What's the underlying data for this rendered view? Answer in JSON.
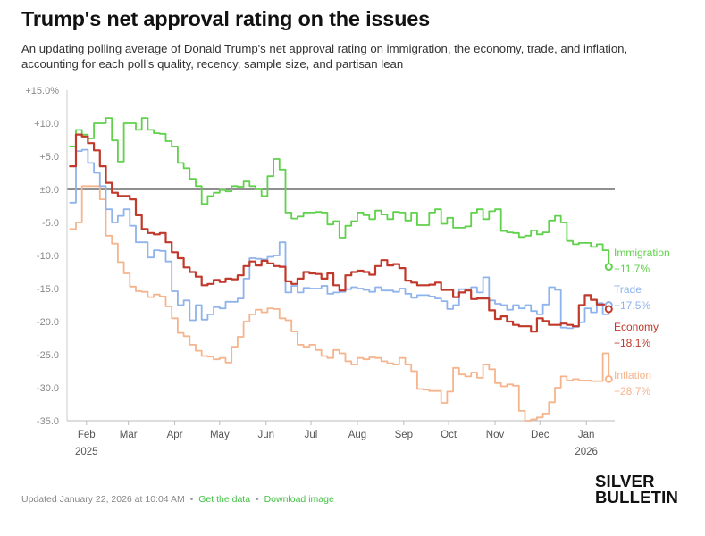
{
  "header": {
    "title": "Trump's net approval rating on the issues",
    "subtitle": "An updating polling average of Donald Trump's net approval rating on immigration, the economy, trade, and inflation, accounting for each poll's quality, recency, sample size, and partisan lean"
  },
  "footer": {
    "updated": "Updated January 22, 2026 at 10:04 AM",
    "separator": "•",
    "get_data": "Get the data",
    "download": "Download image"
  },
  "logo": {
    "line1": "SILVER",
    "line2": "BULLETIN"
  },
  "colors": {
    "immigration": "#5fd14a",
    "trade": "#8fb3ec",
    "economy": "#c0392b",
    "inflation": "#f6b48c",
    "link": "#45c045"
  },
  "chart_data": {
    "type": "line",
    "title": "Trump's net approval rating on the issues",
    "xlabel": "",
    "ylabel": "",
    "ylim": [
      -35,
      15
    ],
    "yticks": [
      15,
      10,
      5,
      0,
      -5,
      -10,
      -15,
      -20,
      -25,
      -30,
      -35
    ],
    "ytick_labels": [
      "+15.0%",
      "+10.0",
      "+5.0",
      "±0.0",
      "-5.0",
      "-10.0",
      "-15.0",
      "-20.0",
      "-25.0",
      "-30.0",
      "-35.0"
    ],
    "xlim_days": [
      0,
      366
    ],
    "xticks": [
      {
        "day": 13,
        "label": "Feb",
        "sub": "2025"
      },
      {
        "day": 41,
        "label": "Mar"
      },
      {
        "day": 72,
        "label": "Apr"
      },
      {
        "day": 102,
        "label": "May"
      },
      {
        "day": 133,
        "label": "Jun"
      },
      {
        "day": 163,
        "label": "Jul"
      },
      {
        "day": 194,
        "label": "Aug"
      },
      {
        "day": 225,
        "label": "Sep"
      },
      {
        "day": 255,
        "label": "Oct"
      },
      {
        "day": 286,
        "label": "Nov"
      },
      {
        "day": 316,
        "label": "Dec"
      },
      {
        "day": 347,
        "label": "Jan",
        "sub": "2026"
      }
    ],
    "x_days": [
      2,
      6,
      10,
      14,
      18,
      22,
      26,
      30,
      34,
      38,
      42,
      46,
      50,
      54,
      58,
      62,
      66,
      70,
      74,
      78,
      82,
      86,
      90,
      94,
      98,
      102,
      106,
      110,
      114,
      118,
      122,
      126,
      130,
      134,
      138,
      142,
      146,
      150,
      154,
      158,
      162,
      166,
      170,
      174,
      178,
      182,
      186,
      190,
      194,
      198,
      202,
      206,
      210,
      214,
      218,
      222,
      226,
      230,
      234,
      238,
      242,
      246,
      250,
      254,
      258,
      262,
      266,
      270,
      274,
      278,
      282,
      286,
      290,
      294,
      298,
      302,
      306,
      310,
      314,
      318,
      322,
      326,
      330,
      334,
      338,
      342,
      346,
      350,
      354,
      358,
      362
    ],
    "series": [
      {
        "name": "Immigration",
        "color": "#5fd14a",
        "final_label": "−11.7%",
        "values": [
          6.5,
          9,
          8.3,
          7.7,
          10,
          10,
          10.8,
          7.4,
          4.2,
          10,
          10,
          9,
          10.8,
          9,
          8.5,
          8.4,
          7.3,
          6.5,
          4,
          3.2,
          1.6,
          0.5,
          -2.2,
          -1,
          -0.5,
          -0.1,
          -0.3,
          0.5,
          0.4,
          1.2,
          0.5,
          0,
          -1,
          2,
          4.6,
          3,
          -3.5,
          -4.4,
          -4.1,
          -3.5,
          -3.5,
          -3.4,
          -3.5,
          -5.3,
          -4.8,
          -7.3,
          -5.5,
          -4.8,
          -3.5,
          -3.9,
          -4.5,
          -3.2,
          -3.8,
          -4.5,
          -3.4,
          -3.5,
          -4.7,
          -3.5,
          -5.4,
          -5.4,
          -3.5,
          -3,
          -5.2,
          -4.3,
          -5.8,
          -5.8,
          -5.6,
          -3.5,
          -3,
          -4.5,
          -3.3,
          -3,
          -6.3,
          -6.5,
          -6.6,
          -7.2,
          -7,
          -6.2,
          -6.8,
          -6.5,
          -4.7,
          -4,
          -5,
          -7.8,
          -8.3,
          -8.1,
          -8.1,
          -8.7,
          -8.3,
          -9.2,
          -11.7
        ]
      },
      {
        "name": "Trade",
        "color": "#8fb3ec",
        "final_label": "−17.5%",
        "values": [
          -2,
          5.8,
          6,
          4,
          2.5,
          0.5,
          -3,
          -5,
          -4,
          -3,
          -5.5,
          -8,
          -8,
          -10.3,
          -9.2,
          -9.3,
          -10.9,
          -15.4,
          -17.5,
          -16.8,
          -19.8,
          -17.5,
          -19.7,
          -18.9,
          -17.8,
          -18,
          -17,
          -17,
          -16.5,
          -13.5,
          -10.4,
          -10.5,
          -10.6,
          -10.2,
          -10,
          -8,
          -15.6,
          -14.6,
          -15.6,
          -14.9,
          -15,
          -15,
          -14.6,
          -15.8,
          -15.6,
          -15.5,
          -15.1,
          -14.8,
          -15,
          -15.2,
          -15.5,
          -14.8,
          -15.3,
          -15.3,
          -15.5,
          -15,
          -15.8,
          -16.4,
          -16,
          -16,
          -16.2,
          -16.5,
          -16.9,
          -18.1,
          -17.5,
          -15.1,
          -15.1,
          -14.8,
          -15.6,
          -13.3,
          -16.8,
          -17.3,
          -17.5,
          -18.2,
          -17.5,
          -18,
          -17.5,
          -18.4,
          -18.9,
          -17.4,
          -14.8,
          -15.2,
          -20.9,
          -21,
          -20.8,
          -20.1,
          -18,
          -18.6,
          -17.2,
          -18.9,
          -17.5
        ]
      },
      {
        "name": "Economy",
        "color": "#c0392b",
        "final_label": "−18.1%",
        "values": [
          3.5,
          8.3,
          8,
          7,
          5.9,
          3.5,
          1,
          -0.5,
          -1,
          -1,
          -1.5,
          -3.9,
          -6,
          -6.6,
          -6.8,
          -6.6,
          -8,
          -9.5,
          -10.4,
          -11.8,
          -12.5,
          -13.2,
          -14.5,
          -14.3,
          -13.7,
          -14,
          -13.5,
          -13.6,
          -13,
          -11.6,
          -10.9,
          -11.5,
          -10.8,
          -11.2,
          -11.6,
          -11.7,
          -13.9,
          -14.3,
          -13.5,
          -12.5,
          -12.7,
          -12.8,
          -13.5,
          -12.7,
          -14.5,
          -15.3,
          -13,
          -12.5,
          -12.3,
          -12.5,
          -12.9,
          -11.6,
          -10.7,
          -11.5,
          -11.3,
          -11.9,
          -13.8,
          -14.1,
          -14.5,
          -14.5,
          -14.4,
          -14.1,
          -15.2,
          -15.2,
          -16.3,
          -15.6,
          -15.3,
          -16.6,
          -16.5,
          -16.5,
          -18.3,
          -19.6,
          -19.2,
          -20,
          -20.5,
          -20.7,
          -20.7,
          -21.5,
          -19.5,
          -19.9,
          -20.5,
          -20.5,
          -20.3,
          -20.5,
          -20.7,
          -17.5,
          -16,
          -16.7,
          -17.4,
          -17.4,
          -18.1
        ]
      },
      {
        "name": "Inflation",
        "color": "#f6b48c",
        "final_label": "−28.7%",
        "values": [
          -6,
          -5,
          0.5,
          0.5,
          0.5,
          -1.5,
          -7,
          -8.2,
          -11,
          -12.7,
          -14.7,
          -15.4,
          -15.5,
          -16.3,
          -15.9,
          -16.2,
          -17.7,
          -19.5,
          -21.7,
          -22.2,
          -23.5,
          -24.4,
          -25.2,
          -25.3,
          -25.7,
          -25.5,
          -26.2,
          -23.8,
          -22.3,
          -20,
          -18.9,
          -18.2,
          -18.6,
          -18,
          -18.1,
          -19.5,
          -19.8,
          -21.5,
          -23.5,
          -23.8,
          -23.5,
          -24.3,
          -25.2,
          -25.5,
          -24.3,
          -24.8,
          -26,
          -26.5,
          -25.5,
          -25.7,
          -25.4,
          -25.5,
          -26,
          -26.3,
          -26.5,
          -25.5,
          -26.5,
          -27.5,
          -30.2,
          -30.3,
          -30.5,
          -30.5,
          -32.3,
          -30.6,
          -27,
          -28,
          -28.3,
          -27.7,
          -28.5,
          -26.5,
          -27.2,
          -29.3,
          -29.8,
          -29.5,
          -29.7,
          -33.5,
          -35,
          -34.8,
          -34.5,
          -33.9,
          -32.2,
          -30,
          -28.3,
          -28.9,
          -28.7,
          -28.9,
          -28.9,
          -29,
          -29,
          -24.8,
          -28.7
        ]
      }
    ]
  }
}
